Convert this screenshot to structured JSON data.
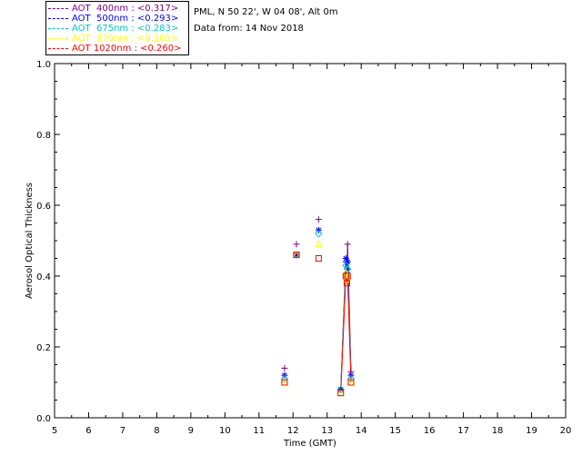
{
  "header": {
    "site": "PML, N 50 22', W 04 08', Alt 0m",
    "date": "Data from: 14 Nov 2018"
  },
  "legend": [
    {
      "label": "AOT  400nm : <0.317>",
      "color": "#800080"
    },
    {
      "label": "AOT  500nm : <0.293>",
      "color": "#0000ff"
    },
    {
      "label": "AOT  675nm : <0.283>",
      "color": "#00c8c8"
    },
    {
      "label": "AOT  870nm : <0.269>",
      "color": "#ffff00"
    },
    {
      "label": "AOT 1020nm : <0.260>",
      "color": "#ff0000"
    }
  ],
  "chart_data": {
    "type": "scatter",
    "xlabel": "Time (GMT)",
    "ylabel": "Aerosol Optical Thickness",
    "xlim": [
      5,
      20
    ],
    "ylim": [
      0.0,
      1.0
    ],
    "xticks": [
      "5",
      "6",
      "7",
      "8",
      "9",
      "10",
      "11",
      "12",
      "13",
      "14",
      "15",
      "16",
      "17",
      "18",
      "19",
      "20"
    ],
    "yticks": [
      "0.0",
      "0.2",
      "0.4",
      "0.6",
      "0.8",
      "1.0"
    ],
    "x": [
      11.75,
      12.1,
      12.75,
      13.4,
      13.55,
      13.58,
      13.6,
      13.7
    ],
    "series": [
      {
        "name": "AOT  400nm",
        "color": "#800080",
        "marker": "plus",
        "values": [
          0.14,
          0.49,
          0.56,
          0.08,
          0.44,
          0.41,
          0.49,
          0.13
        ]
      },
      {
        "name": "AOT  500nm",
        "color": "#0000ff",
        "marker": "asterisk",
        "values": [
          0.12,
          0.46,
          0.53,
          0.08,
          0.45,
          0.42,
          0.44,
          0.12
        ]
      },
      {
        "name": "AOT  675nm",
        "color": "#00c8c8",
        "marker": "diamond",
        "values": [
          0.11,
          0.46,
          0.52,
          0.08,
          0.43,
          0.4,
          0.42,
          0.11
        ]
      },
      {
        "name": "AOT  870nm",
        "color": "#ffff00",
        "marker": "triangle",
        "values": [
          0.1,
          0.46,
          0.49,
          0.07,
          0.41,
          0.39,
          0.4,
          0.1
        ]
      },
      {
        "name": "AOT 1020nm",
        "color": "#ff0000",
        "marker": "square",
        "values": [
          0.1,
          0.46,
          0.45,
          0.07,
          0.4,
          0.38,
          0.4,
          0.1
        ]
      }
    ],
    "grid": false,
    "legend_position": "top-left"
  }
}
